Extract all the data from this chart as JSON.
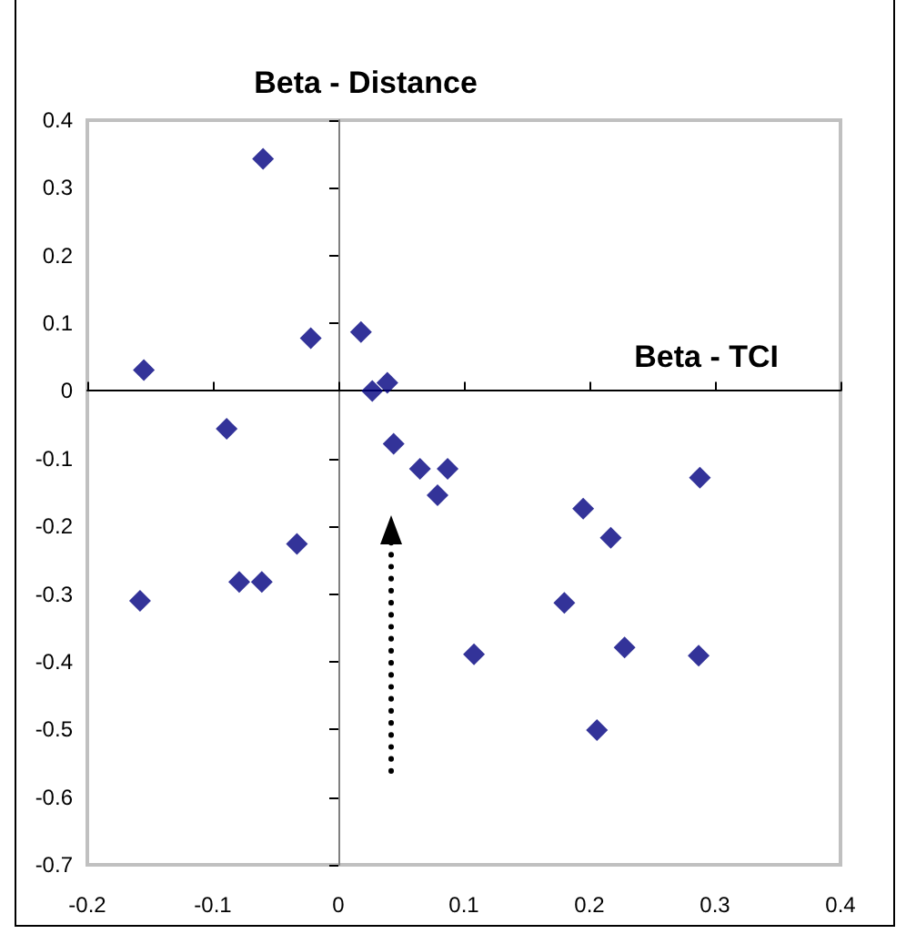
{
  "chart_data": {
    "type": "scatter",
    "xlabel": "Beta - TCI",
    "ylabel": "Beta - Distance",
    "x": [
      -0.06,
      -0.155,
      -0.022,
      0.018,
      0.027,
      0.039,
      -0.089,
      0.044,
      0.065,
      0.087,
      0.079,
      -0.033,
      -0.079,
      -0.061,
      -0.158,
      0.108,
      0.288,
      0.195,
      0.217,
      0.18,
      0.228,
      0.287,
      0.206
    ],
    "series": [
      {
        "color": "#000080",
        "values": [
          0.343,
          0.031,
          0.078,
          0.087,
          0.0,
          0.012,
          -0.056,
          -0.078,
          -0.115,
          -0.115,
          -0.154,
          -0.226,
          -0.282,
          -0.282,
          -0.31,
          -0.389,
          -0.128,
          -0.174,
          -0.217,
          -0.313,
          -0.379,
          -0.391,
          -0.501
        ]
      }
    ],
    "xlim": [
      -0.2,
      0.4
    ],
    "xticks": [
      -0.2,
      -0.1,
      0,
      0.1,
      0.2,
      0.3,
      0.4
    ],
    "ylim": [
      -0.7,
      0.4
    ],
    "yticks": [
      -0.7,
      -0.6,
      -0.5,
      -0.4,
      -0.3,
      -0.2,
      -0.1,
      0,
      0.1,
      0.2,
      0.3,
      0.4
    ],
    "marker": "diamond",
    "grid": false
  }
}
